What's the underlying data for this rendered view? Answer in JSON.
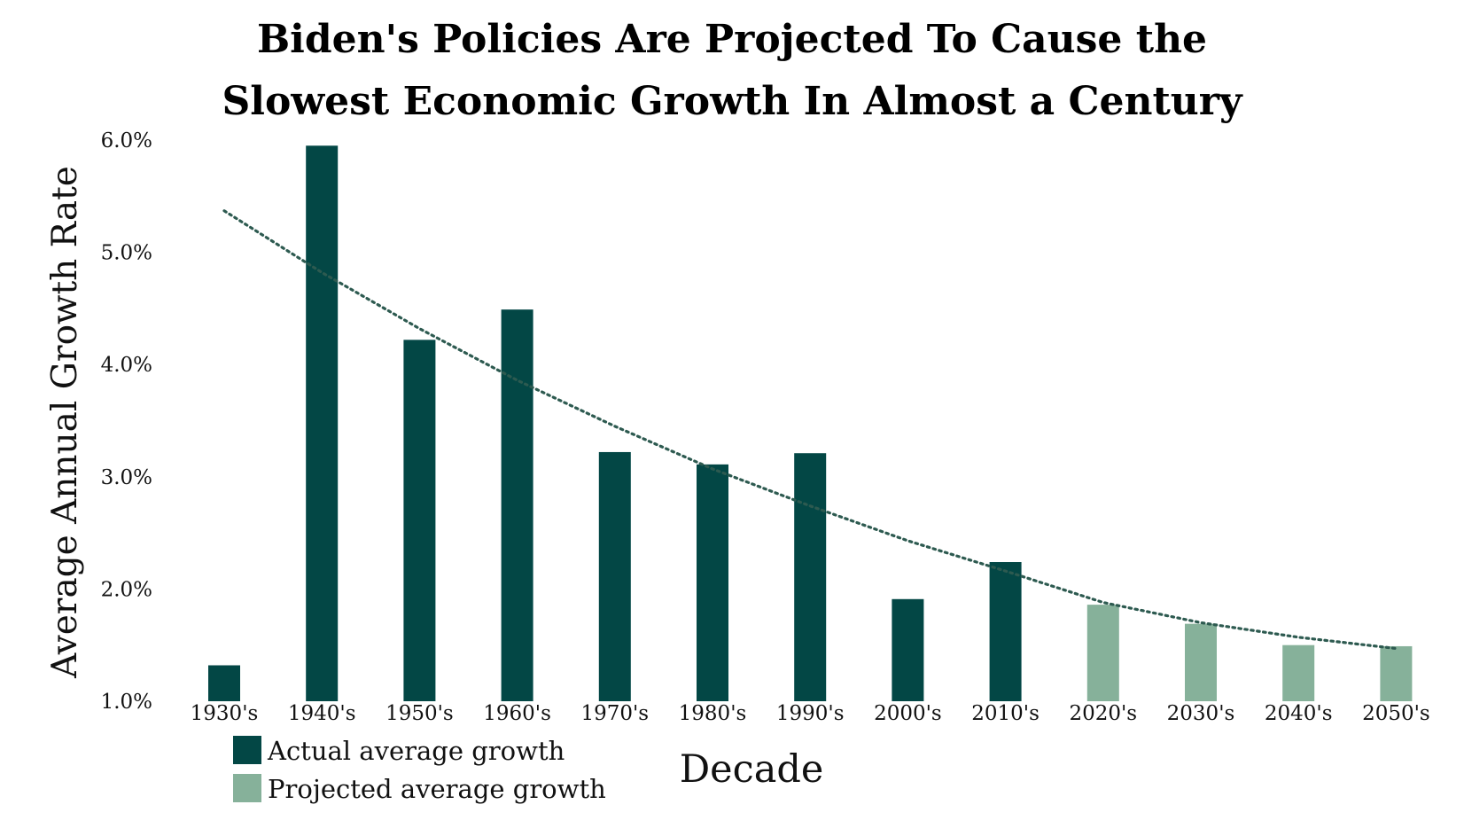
{
  "chart_data": {
    "type": "bar",
    "title_lines": [
      "Biden's Policies Are Projected To Cause the",
      "Slowest Economic Growth In Almost a Century"
    ],
    "xlabel": "Decade",
    "ylabel": "Average Annual Growth Rate",
    "ylim": [
      1.0,
      6.0
    ],
    "y_ticks": [
      {
        "value": 1.0,
        "label": "1.0%"
      },
      {
        "value": 2.0,
        "label": "2.0%"
      },
      {
        "value": 3.0,
        "label": "3.0%"
      },
      {
        "value": 4.0,
        "label": "4.0%"
      },
      {
        "value": 5.0,
        "label": "5.0%"
      },
      {
        "value": 6.0,
        "label": "6.0%"
      }
    ],
    "grid": false,
    "legend_position": "bottom-left",
    "categories": [
      "1930's",
      "1940's",
      "1950's",
      "1960's",
      "1970's",
      "1980's",
      "1990's",
      "2000's",
      "2010's",
      "2020's",
      "2030's",
      "2040's",
      "2050's"
    ],
    "series": [
      {
        "name": "Actual average growth",
        "color": "#034745",
        "values": [
          1.32,
          5.95,
          4.22,
          4.49,
          3.22,
          3.11,
          3.21,
          1.91,
          2.24,
          null,
          null,
          null,
          null
        ]
      },
      {
        "name": "Projected average growth",
        "color": "#86b19a",
        "values": [
          null,
          null,
          null,
          null,
          null,
          null,
          null,
          null,
          null,
          1.86,
          1.69,
          1.5,
          1.49
        ]
      }
    ],
    "trendline": {
      "style": "dotted",
      "color": "#2d5a50",
      "values": [
        5.37,
        4.82,
        4.32,
        3.86,
        3.45,
        3.07,
        2.74,
        2.43,
        2.16,
        1.88,
        1.7,
        1.57,
        1.47
      ]
    }
  }
}
